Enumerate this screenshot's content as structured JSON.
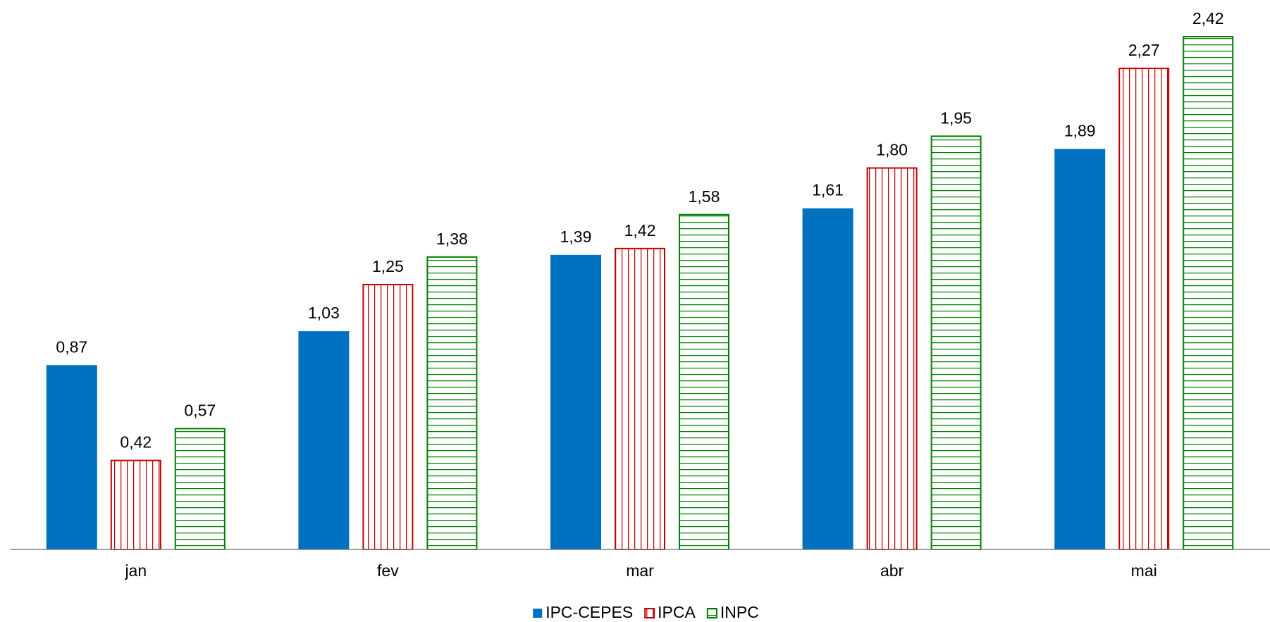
{
  "chart_data": {
    "type": "bar",
    "categories": [
      "jan",
      "fev",
      "mar",
      "abr",
      "mai"
    ],
    "series": [
      {
        "name": "IPC-CEPES",
        "color": "#0070c0",
        "fill": "solid",
        "values": [
          0.87,
          1.03,
          1.39,
          1.61,
          1.89
        ],
        "value_labels": [
          "0,87",
          "1,03",
          "1,39",
          "1,61",
          "1,89"
        ]
      },
      {
        "name": "IPCA",
        "color": "#c00000",
        "fill": "vertical",
        "values": [
          0.42,
          1.25,
          1.42,
          1.8,
          2.27
        ],
        "value_labels": [
          "0,42",
          "1,25",
          "1,42",
          "1,80",
          "2,27"
        ]
      },
      {
        "name": "INPC",
        "color": "#008000",
        "fill": "horizontal",
        "values": [
          0.57,
          1.38,
          1.58,
          1.95,
          2.42
        ],
        "value_labels": [
          "0,57",
          "1,38",
          "1,58",
          "1,95",
          "2,42"
        ]
      }
    ],
    "legend": "bottom"
  }
}
